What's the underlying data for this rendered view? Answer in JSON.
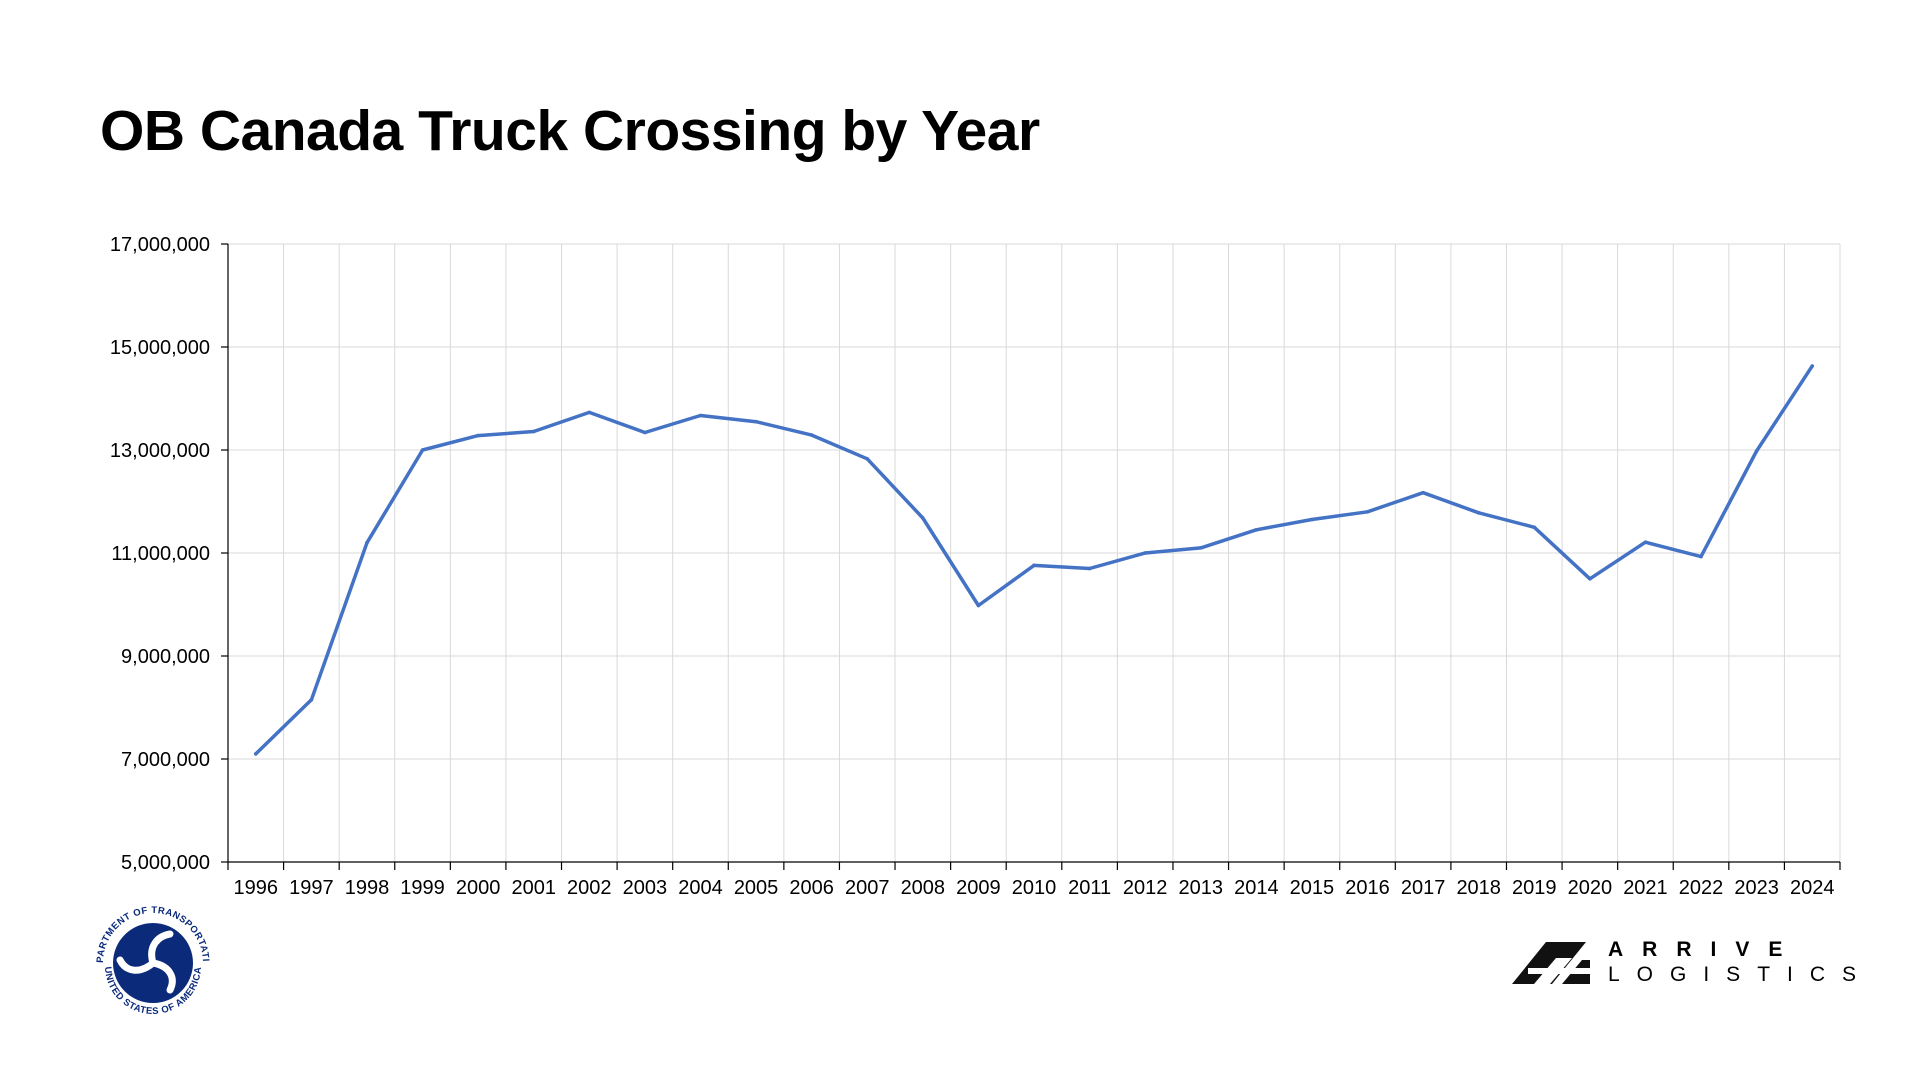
{
  "page": {
    "title": "OB Canada Truck Crossing by Year"
  },
  "chart_data": {
    "type": "line",
    "title": "OB Canada Truck Crossing by Year",
    "xlabel": "",
    "ylabel": "",
    "categories": [
      "1996",
      "1997",
      "1998",
      "1999",
      "2000",
      "2001",
      "2002",
      "2003",
      "2004",
      "2005",
      "2006",
      "2007",
      "2008",
      "2009",
      "2010",
      "2011",
      "2012",
      "2013",
      "2014",
      "2015",
      "2016",
      "2017",
      "2018",
      "2019",
      "2020",
      "2021",
      "2022",
      "2023",
      "2024"
    ],
    "series": [
      {
        "name": "",
        "color": "#4472C4",
        "values": [
          7100000,
          8150000,
          11200000,
          13000000,
          13280000,
          13360000,
          13730000,
          13340000,
          13670000,
          13550000,
          13290000,
          12830000,
          11680000,
          9980000,
          10760000,
          10700000,
          11000000,
          11100000,
          11450000,
          11650000,
          11800000,
          12170000,
          11780000,
          11500000,
          10500000,
          11210000,
          10930000,
          12980000,
          14630000
        ]
      }
    ],
    "ylim": [
      5000000,
      17000000
    ],
    "yticks": [
      5000000,
      7000000,
      9000000,
      11000000,
      13000000,
      15000000,
      17000000
    ],
    "ytick_labels": [
      "5,000,000",
      "7,000,000",
      "9,000,000",
      "11,000,000",
      "13,000,000",
      "15,000,000",
      "17,000,000"
    ],
    "grid": true,
    "legend": "none"
  },
  "branding": {
    "seal_icon": "dot-seal-icon",
    "seal_text_top": "DEPARTMENT OF TRANSPORTATION",
    "seal_text_bottom": "UNITED STATES OF AMERICA",
    "seal_color": "#0b2a7a",
    "brand_icon": "arrive-logo-icon",
    "brand_line1": "ARRIVE",
    "brand_line2": "LOGISTICS"
  }
}
